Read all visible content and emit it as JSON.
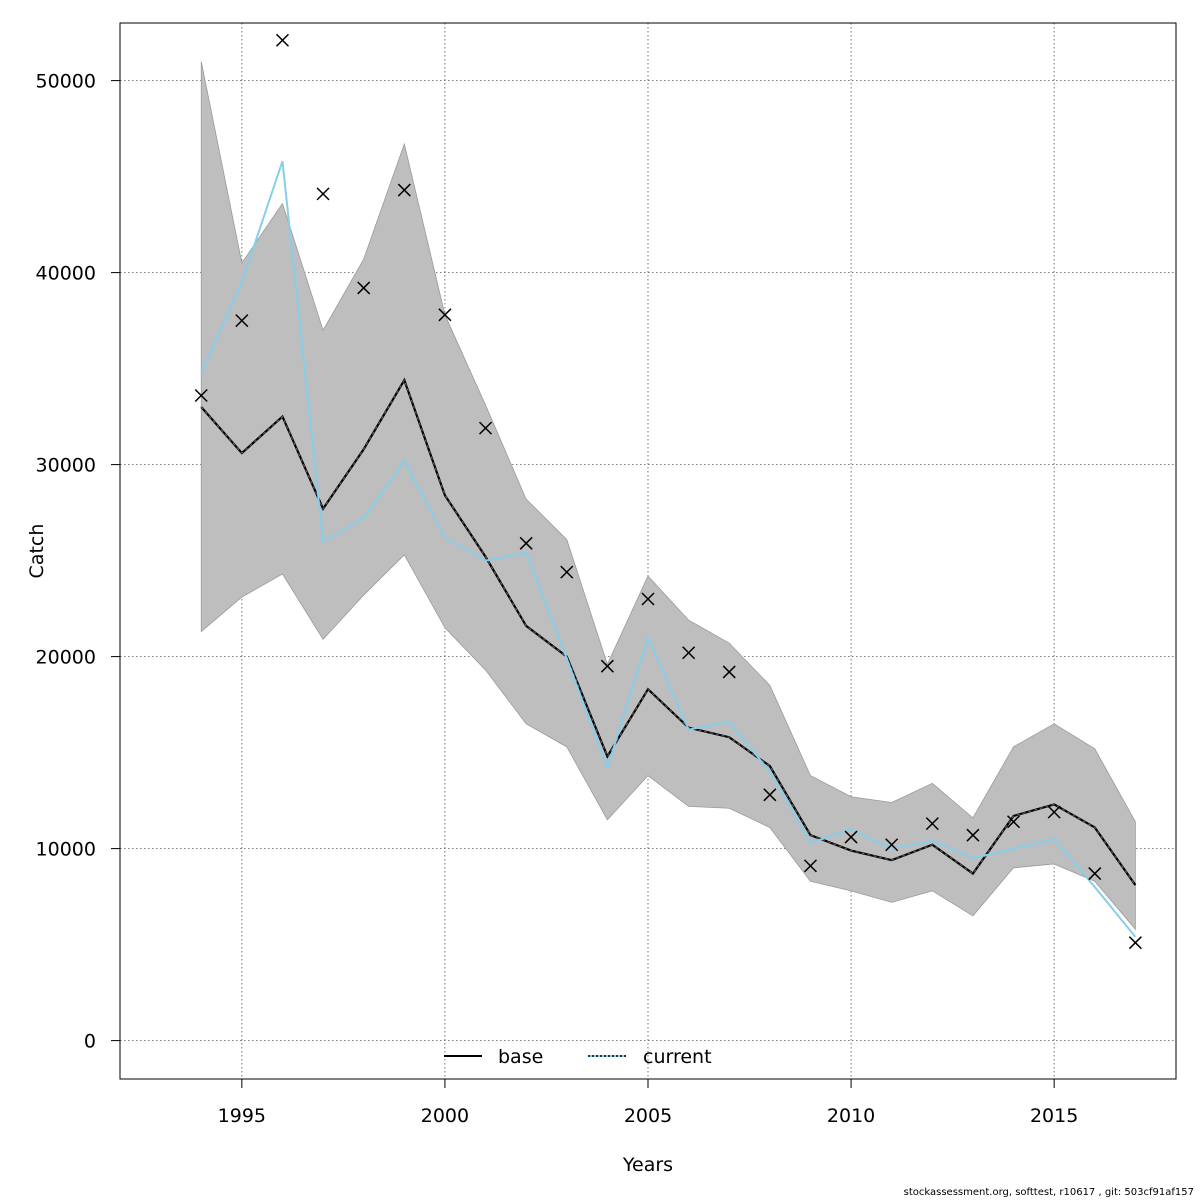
{
  "chart_data": {
    "type": "line",
    "xlabel": "Years",
    "ylabel": "Catch",
    "xlim": [
      1992.0,
      2018.0
    ],
    "ylim": [
      -2000,
      53000
    ],
    "x_ticks": [
      1995,
      2000,
      2005,
      2010,
      2015
    ],
    "y_ticks": [
      0,
      10000,
      20000,
      30000,
      40000,
      50000
    ],
    "grid": true,
    "legend_position": "bottom-center",
    "x": [
      1994,
      1995,
      1996,
      1997,
      1998,
      1999,
      2000,
      2001,
      2002,
      2003,
      2004,
      2005,
      2006,
      2007,
      2008,
      2009,
      2010,
      2011,
      2012,
      2013,
      2014,
      2015,
      2016,
      2017
    ],
    "series": [
      {
        "name": "base",
        "color": "#1a1a1a",
        "values": [
          33000,
          30600,
          32500,
          27700,
          30800,
          34400,
          28400,
          25200,
          21600,
          20000,
          14800,
          18300,
          16300,
          15800,
          14300,
          10700,
          9900,
          9400,
          10200,
          8700,
          11700,
          12300,
          11100,
          8100
        ]
      },
      {
        "name": "current",
        "color": "#87ceeb",
        "values": [
          34800,
          39500,
          45800,
          26000,
          27200,
          30200,
          26200,
          25000,
          25400,
          19900,
          14200,
          21000,
          16200,
          16600,
          14000,
          10300,
          11000,
          10000,
          10400,
          9500,
          10000,
          10500,
          8000,
          5400
        ]
      }
    ],
    "band": {
      "upper": [
        51000,
        40500,
        43600,
        37000,
        40700,
        46700,
        37800,
        33100,
        28200,
        26100,
        19600,
        24200,
        21900,
        20700,
        18500,
        13800,
        12700,
        12400,
        13400,
        11600,
        15300,
        16500,
        15200,
        11400
      ],
      "lower": [
        21300,
        23100,
        24300,
        20900,
        23200,
        25300,
        21500,
        19300,
        16500,
        15300,
        11500,
        13800,
        12200,
        12100,
        11100,
        8300,
        7800,
        7200,
        7800,
        6500,
        9000,
        9200,
        8300,
        5800
      ],
      "color": "#bebebe"
    },
    "observed": {
      "marker": "x",
      "values": [
        33600,
        37500,
        52100,
        44100,
        39200,
        44300,
        37800,
        31900,
        25900,
        24400,
        19500,
        23000,
        20200,
        19200,
        12800,
        9100,
        10600,
        10200,
        11300,
        10700,
        11400,
        11900,
        8700,
        5100
      ]
    }
  },
  "footer": "stockassessment.org, softtest, r10617 , git: 503cf91af157"
}
